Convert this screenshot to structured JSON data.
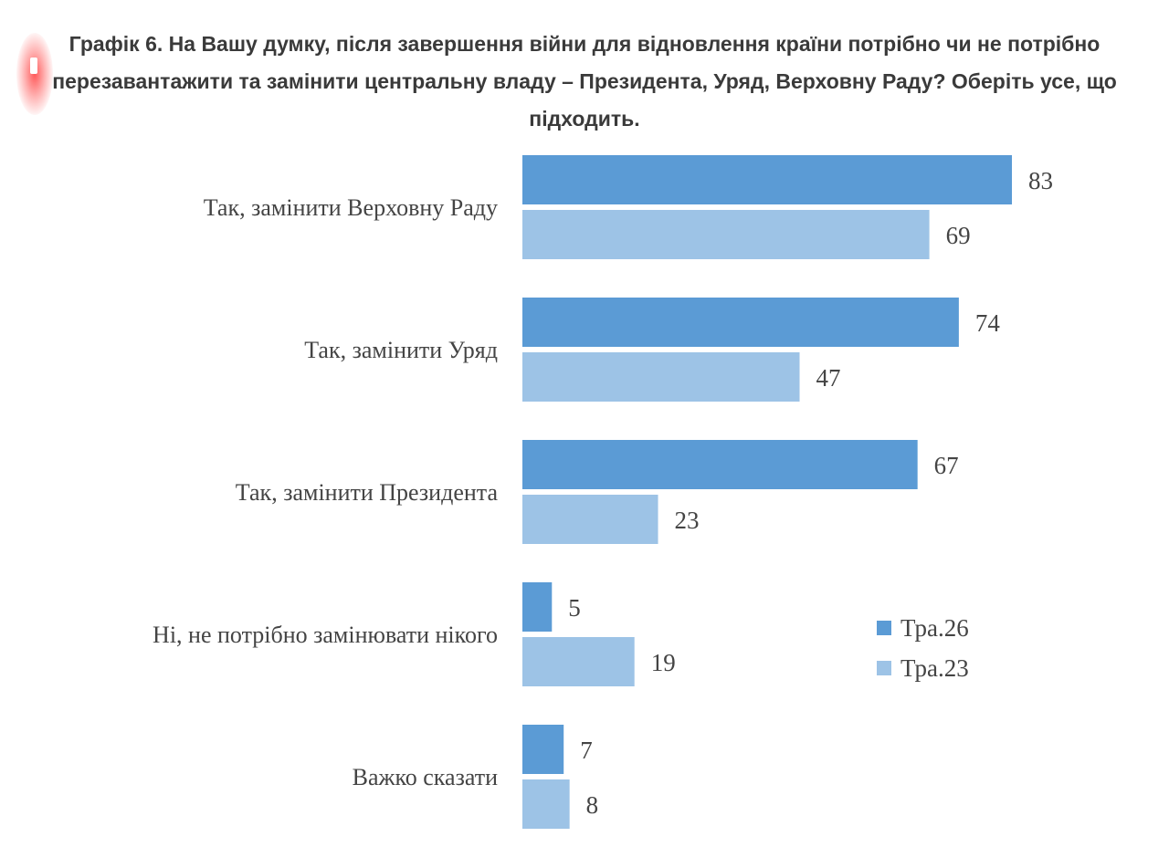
{
  "title": "Графік 6. На Вашу думку, після завершення війни для відновлення країни потрібно чи не потрібно перезавантажити та замінити центральну владу – Президента, Уряд, Верховну Раду? Оберіть усе, що підходить.",
  "colors": {
    "series_1": "#5b9bd5",
    "series_2": "#9dc3e6",
    "text": "#444444"
  },
  "chart_data": {
    "type": "bar",
    "orientation": "horizontal",
    "categories": [
      "Так, замінити Верховну Раду",
      "Так, замінити Уряд",
      "Так, замінити Президента",
      "Ні, не потрібно замінювати нікого",
      "Важко сказати"
    ],
    "series": [
      {
        "name": "Тра.26",
        "values": [
          83,
          74,
          67,
          5,
          7
        ]
      },
      {
        "name": "Тра.23",
        "values": [
          69,
          47,
          23,
          19,
          8
        ]
      }
    ],
    "xlim": [
      0,
      100
    ],
    "grid": false,
    "legend_position": "right"
  }
}
